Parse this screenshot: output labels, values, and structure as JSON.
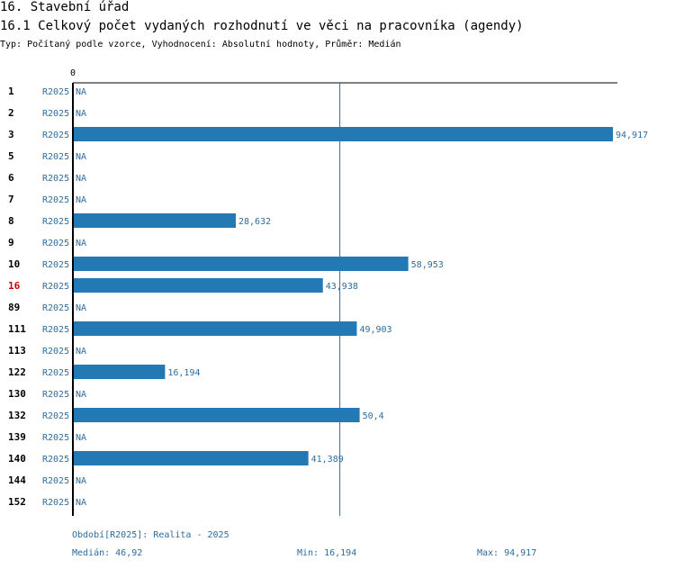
{
  "page": {
    "heading": "16. Stavební úřad",
    "subheading": "16.1 Celkový počet vydaných rozhodnutí ve věci na pracovníka (agendy)",
    "meta": "Typ: Počítaný podle vzorce, Vyhodnocení: Absolutní hodnoty, Průměr: Medián"
  },
  "footer": {
    "period": "Období[R2025]: Realita - 2025",
    "median": "Medián: 46,92",
    "min": "Min: 16,194",
    "max": "Max: 94,917"
  },
  "colors": {
    "bar": "#2379b4",
    "label": "#2d6c9e",
    "highlight": "#cc0000",
    "axis": "#000000",
    "median_line": "#2d6c9e"
  },
  "chart_data": {
    "type": "bar",
    "orientation": "horizontal",
    "axis_zero_label": "0",
    "xlim": [
      0,
      94.917
    ],
    "median": 46.92,
    "period_label": "R2025",
    "highlight_category": "16",
    "na_label": "NA",
    "categories": [
      "1",
      "2",
      "3",
      "5",
      "6",
      "7",
      "8",
      "9",
      "10",
      "16",
      "89",
      "111",
      "113",
      "122",
      "130",
      "132",
      "139",
      "140",
      "144",
      "152"
    ],
    "values": [
      null,
      null,
      94.917,
      null,
      null,
      null,
      28.632,
      null,
      58.953,
      43.938,
      null,
      49.903,
      null,
      16.194,
      null,
      50.4,
      null,
      41.389,
      null,
      null
    ],
    "value_labels": [
      "NA",
      "NA",
      "94,917",
      "NA",
      "NA",
      "NA",
      "28,632",
      "NA",
      "58,953",
      "43,938",
      "NA",
      "49,903",
      "NA",
      "16,194",
      "NA",
      "50,4",
      "NA",
      "41,389",
      "NA",
      "NA"
    ]
  }
}
